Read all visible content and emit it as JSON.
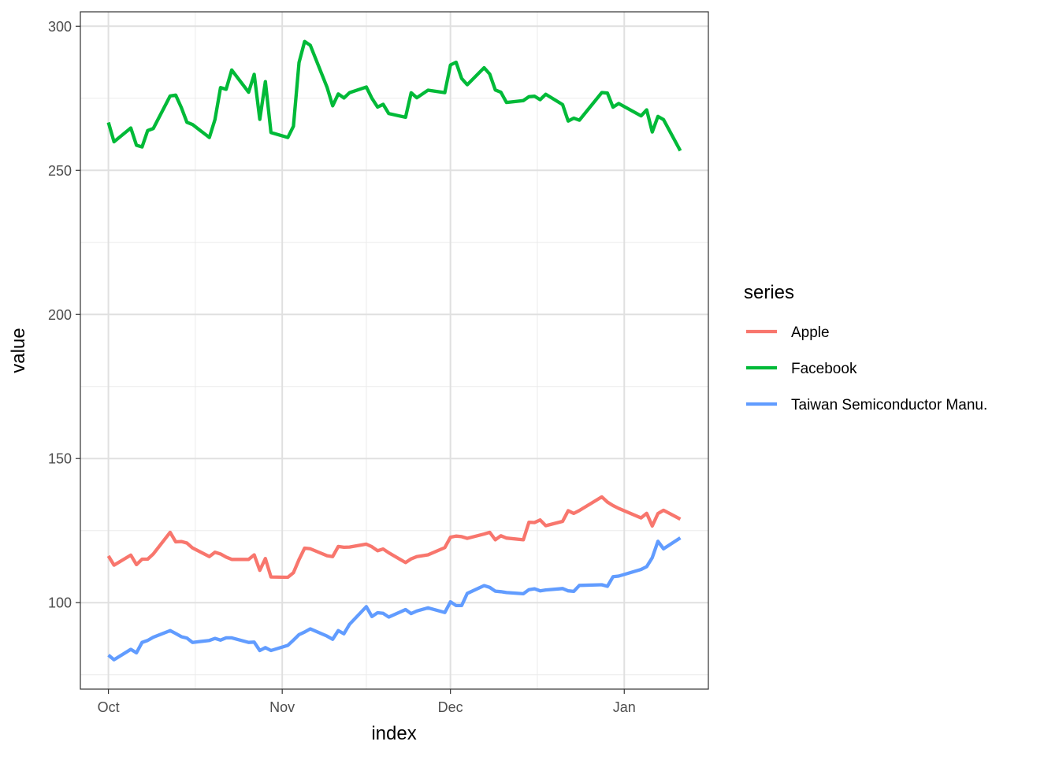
{
  "chart_data": {
    "type": "line",
    "xlabel": "index",
    "ylabel": "value",
    "ylim": [
      70,
      305
    ],
    "y_ticks": [
      100,
      150,
      200,
      250,
      300
    ],
    "x_ticks": [
      {
        "label": "Oct",
        "date": "2020-10-01"
      },
      {
        "label": "Nov",
        "date": "2020-11-01"
      },
      {
        "label": "Dec",
        "date": "2020-12-01"
      },
      {
        "label": "Jan",
        "date": "2021-01-01"
      }
    ],
    "xlim": [
      "2020-09-26",
      "2021-01-16"
    ],
    "grid": true,
    "legend_title": "series",
    "legend_position": "right",
    "series": [
      {
        "name": "Apple",
        "color": "#F8766D",
        "points": [
          [
            "2020-10-01",
            116.2
          ],
          [
            "2020-10-02",
            113.0
          ],
          [
            "2020-10-05",
            116.5
          ],
          [
            "2020-10-06",
            113.2
          ],
          [
            "2020-10-07",
            115.1
          ],
          [
            "2020-10-08",
            115.1
          ],
          [
            "2020-10-09",
            116.9
          ],
          [
            "2020-10-12",
            124.4
          ],
          [
            "2020-10-13",
            121.1
          ],
          [
            "2020-10-14",
            121.2
          ],
          [
            "2020-10-15",
            120.7
          ],
          [
            "2020-10-16",
            119.0
          ],
          [
            "2020-10-19",
            115.98
          ],
          [
            "2020-10-20",
            117.5
          ],
          [
            "2020-10-21",
            116.9
          ],
          [
            "2020-10-22",
            115.8
          ],
          [
            "2020-10-23",
            115.0
          ],
          [
            "2020-10-26",
            115.0
          ],
          [
            "2020-10-27",
            116.6
          ],
          [
            "2020-10-28",
            111.2
          ],
          [
            "2020-10-29",
            115.3
          ],
          [
            "2020-10-30",
            108.9
          ],
          [
            "2020-11-02",
            108.8
          ],
          [
            "2020-11-03",
            110.4
          ],
          [
            "2020-11-04",
            114.95
          ],
          [
            "2020-11-05",
            118.9
          ],
          [
            "2020-11-06",
            118.7
          ],
          [
            "2020-11-09",
            116.3
          ],
          [
            "2020-11-10",
            116.0
          ],
          [
            "2020-11-11",
            119.5
          ],
          [
            "2020-11-12",
            119.2
          ],
          [
            "2020-11-13",
            119.3
          ],
          [
            "2020-11-16",
            120.3
          ],
          [
            "2020-11-17",
            119.4
          ],
          [
            "2020-11-18",
            118.0
          ],
          [
            "2020-11-19",
            118.6
          ],
          [
            "2020-11-20",
            117.3
          ],
          [
            "2020-11-23",
            113.9
          ],
          [
            "2020-11-24",
            115.2
          ],
          [
            "2020-11-25",
            116.0
          ],
          [
            "2020-11-27",
            116.6
          ],
          [
            "2020-11-30",
            119.1
          ],
          [
            "2020-12-01",
            122.7
          ],
          [
            "2020-12-02",
            123.1
          ],
          [
            "2020-12-03",
            122.9
          ],
          [
            "2020-12-04",
            122.3
          ],
          [
            "2020-12-07",
            123.8
          ],
          [
            "2020-12-08",
            124.4
          ],
          [
            "2020-12-09",
            121.8
          ],
          [
            "2020-12-10",
            123.2
          ],
          [
            "2020-12-11",
            122.4
          ],
          [
            "2020-12-14",
            121.8
          ],
          [
            "2020-12-15",
            127.9
          ],
          [
            "2020-12-16",
            127.8
          ],
          [
            "2020-12-17",
            128.7
          ],
          [
            "2020-12-18",
            126.7
          ],
          [
            "2020-12-21",
            128.2
          ],
          [
            "2020-12-22",
            131.9
          ],
          [
            "2020-12-23",
            130.96
          ],
          [
            "2020-12-24",
            131.97
          ],
          [
            "2020-12-28",
            136.7
          ],
          [
            "2020-12-29",
            134.9
          ],
          [
            "2020-12-30",
            133.7
          ],
          [
            "2020-12-31",
            132.7
          ],
          [
            "2021-01-04",
            129.4
          ],
          [
            "2021-01-05",
            131.0
          ],
          [
            "2021-01-06",
            126.6
          ],
          [
            "2021-01-07",
            130.9
          ],
          [
            "2021-01-08",
            132.05
          ],
          [
            "2021-01-11",
            128.98
          ]
        ]
      },
      {
        "name": "Facebook",
        "color": "#00BA38",
        "points": [
          [
            "2020-10-01",
            266.6
          ],
          [
            "2020-10-02",
            259.9
          ],
          [
            "2020-10-05",
            264.7
          ],
          [
            "2020-10-06",
            258.7
          ],
          [
            "2020-10-07",
            258.1
          ],
          [
            "2020-10-08",
            263.8
          ],
          [
            "2020-10-09",
            264.5
          ],
          [
            "2020-10-12",
            275.8
          ],
          [
            "2020-10-13",
            276.1
          ],
          [
            "2020-10-14",
            271.8
          ],
          [
            "2020-10-15",
            266.7
          ],
          [
            "2020-10-16",
            265.9
          ],
          [
            "2020-10-19",
            261.4
          ],
          [
            "2020-10-20",
            267.6
          ],
          [
            "2020-10-21",
            278.7
          ],
          [
            "2020-10-22",
            278.1
          ],
          [
            "2020-10-23",
            284.8
          ],
          [
            "2020-10-26",
            277.1
          ],
          [
            "2020-10-27",
            283.3
          ],
          [
            "2020-10-28",
            267.7
          ],
          [
            "2020-10-29",
            280.8
          ],
          [
            "2020-10-30",
            263.1
          ],
          [
            "2020-11-02",
            261.4
          ],
          [
            "2020-11-03",
            265.3
          ],
          [
            "2020-11-04",
            287.4
          ],
          [
            "2020-11-05",
            294.7
          ],
          [
            "2020-11-06",
            293.4
          ],
          [
            "2020-11-09",
            278.8
          ],
          [
            "2020-11-10",
            272.4
          ],
          [
            "2020-11-11",
            276.5
          ],
          [
            "2020-11-12",
            275.1
          ],
          [
            "2020-11-13",
            276.95
          ],
          [
            "2020-11-16",
            278.9
          ],
          [
            "2020-11-17",
            275.0
          ],
          [
            "2020-11-18",
            271.97
          ],
          [
            "2020-11-19",
            272.9
          ],
          [
            "2020-11-20",
            269.7
          ],
          [
            "2020-11-23",
            268.4
          ],
          [
            "2020-11-24",
            276.9
          ],
          [
            "2020-11-25",
            275.2
          ],
          [
            "2020-11-27",
            277.8
          ],
          [
            "2020-11-30",
            276.97
          ],
          [
            "2020-12-01",
            286.55
          ],
          [
            "2020-12-02",
            287.5
          ],
          [
            "2020-12-03",
            281.85
          ],
          [
            "2020-12-04",
            279.7
          ],
          [
            "2020-12-07",
            285.6
          ],
          [
            "2020-12-08",
            283.4
          ],
          [
            "2020-12-09",
            277.9
          ],
          [
            "2020-12-10",
            277.1
          ],
          [
            "2020-12-11",
            273.55
          ],
          [
            "2020-12-14",
            274.2
          ],
          [
            "2020-12-15",
            275.55
          ],
          [
            "2020-12-16",
            275.7
          ],
          [
            "2020-12-17",
            274.5
          ],
          [
            "2020-12-18",
            276.4
          ],
          [
            "2020-12-21",
            272.8
          ],
          [
            "2020-12-22",
            267.1
          ],
          [
            "2020-12-23",
            268.1
          ],
          [
            "2020-12-24",
            267.4
          ],
          [
            "2020-12-28",
            277.0
          ],
          [
            "2020-12-29",
            276.8
          ],
          [
            "2020-12-30",
            271.9
          ],
          [
            "2020-12-31",
            273.2
          ],
          [
            "2021-01-04",
            268.9
          ],
          [
            "2021-01-05",
            270.97
          ],
          [
            "2021-01-06",
            263.3
          ],
          [
            "2021-01-07",
            268.7
          ],
          [
            "2021-01-08",
            267.6
          ],
          [
            "2021-01-11",
            256.8
          ]
        ]
      },
      {
        "name": "Taiwan Semiconductor Manu.",
        "color": "#619CFF",
        "points": [
          [
            "2020-10-01",
            81.8
          ],
          [
            "2020-10-02",
            80.2
          ],
          [
            "2020-10-05",
            83.8
          ],
          [
            "2020-10-06",
            82.6
          ],
          [
            "2020-10-07",
            86.2
          ],
          [
            "2020-10-08",
            86.9
          ],
          [
            "2020-10-09",
            88.0
          ],
          [
            "2020-10-12",
            90.3
          ],
          [
            "2020-10-13",
            89.3
          ],
          [
            "2020-10-14",
            88.2
          ],
          [
            "2020-10-15",
            87.7
          ],
          [
            "2020-10-16",
            86.2
          ],
          [
            "2020-10-19",
            86.9
          ],
          [
            "2020-10-20",
            87.6
          ],
          [
            "2020-10-21",
            87.0
          ],
          [
            "2020-10-22",
            87.8
          ],
          [
            "2020-10-23",
            87.8
          ],
          [
            "2020-10-26",
            86.2
          ],
          [
            "2020-10-27",
            86.3
          ],
          [
            "2020-10-28",
            83.4
          ],
          [
            "2020-10-29",
            84.4
          ],
          [
            "2020-10-30",
            83.4
          ],
          [
            "2020-11-02",
            85.2
          ],
          [
            "2020-11-03",
            87.0
          ],
          [
            "2020-11-04",
            88.9
          ],
          [
            "2020-11-05",
            89.8
          ],
          [
            "2020-11-06",
            90.9
          ],
          [
            "2020-11-09",
            88.4
          ],
          [
            "2020-11-10",
            87.3
          ],
          [
            "2020-11-11",
            90.3
          ],
          [
            "2020-11-12",
            89.2
          ],
          [
            "2020-11-13",
            92.5
          ],
          [
            "2020-11-16",
            98.6
          ],
          [
            "2020-11-17",
            95.2
          ],
          [
            "2020-11-18",
            96.5
          ],
          [
            "2020-11-19",
            96.3
          ],
          [
            "2020-11-20",
            95.0
          ],
          [
            "2020-11-23",
            97.6
          ],
          [
            "2020-11-24",
            96.2
          ],
          [
            "2020-11-25",
            97.1
          ],
          [
            "2020-11-27",
            98.2
          ],
          [
            "2020-11-30",
            96.6
          ],
          [
            "2020-12-01",
            100.3
          ],
          [
            "2020-12-02",
            99.0
          ],
          [
            "2020-12-03",
            99.0
          ],
          [
            "2020-12-04",
            103.2
          ],
          [
            "2020-12-07",
            105.9
          ],
          [
            "2020-12-08",
            105.3
          ],
          [
            "2020-12-09",
            104.0
          ],
          [
            "2020-12-10",
            103.8
          ],
          [
            "2020-12-11",
            103.5
          ],
          [
            "2020-12-14",
            103.1
          ],
          [
            "2020-12-15",
            104.5
          ],
          [
            "2020-12-16",
            104.8
          ],
          [
            "2020-12-17",
            104.1
          ],
          [
            "2020-12-18",
            104.4
          ],
          [
            "2020-12-21",
            104.9
          ],
          [
            "2020-12-22",
            104.1
          ],
          [
            "2020-12-23",
            103.9
          ],
          [
            "2020-12-24",
            106.0
          ],
          [
            "2020-12-28",
            106.2
          ],
          [
            "2020-12-29",
            105.7
          ],
          [
            "2020-12-30",
            109.0
          ],
          [
            "2020-12-31",
            109.2
          ],
          [
            "2021-01-04",
            111.5
          ],
          [
            "2021-01-05",
            112.5
          ],
          [
            "2021-01-06",
            115.6
          ],
          [
            "2021-01-07",
            121.3
          ],
          [
            "2021-01-08",
            118.7
          ],
          [
            "2021-01-11",
            122.5
          ]
        ]
      }
    ]
  }
}
